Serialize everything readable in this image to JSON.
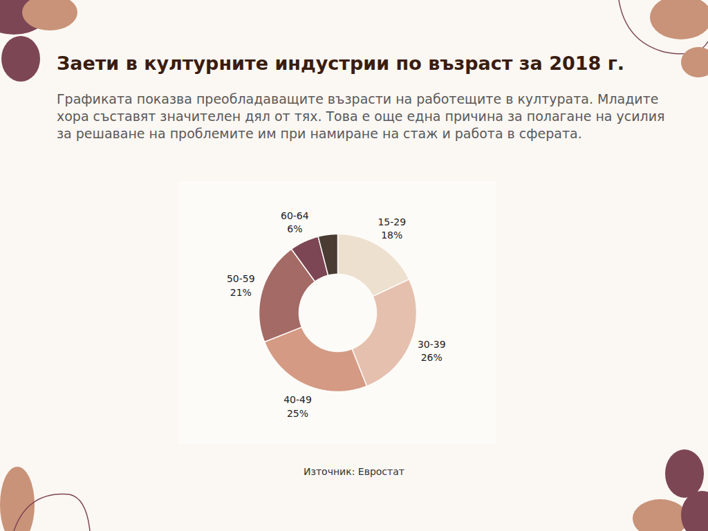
{
  "chart_data": {
    "type": "pie",
    "title": "Заети в културните индустрии по възраст за 2018 г.",
    "subtitle": "Графиката показва преобладаващите възрасти на работещите в културата. Младите хора съставят значителен дял от тях. Това е още една причина за полагане на усилия за решаване на проблемите им при намиране на стаж и работа в сферата.",
    "caption": "Източник: Евростат",
    "categories": [
      "15-29",
      "30-39",
      "40-49",
      "50-59",
      "60-64",
      null
    ],
    "values": [
      18,
      26,
      25,
      21,
      6,
      4
    ],
    "value_labels": [
      "18%",
      "26%",
      "25%",
      "21%",
      "6%",
      null
    ],
    "colors": [
      "#ede0cf",
      "#e5c0ae",
      "#d49a84",
      "#a46a66",
      "#7c4655",
      "#4a3b33"
    ],
    "data_labels": true
  }
}
